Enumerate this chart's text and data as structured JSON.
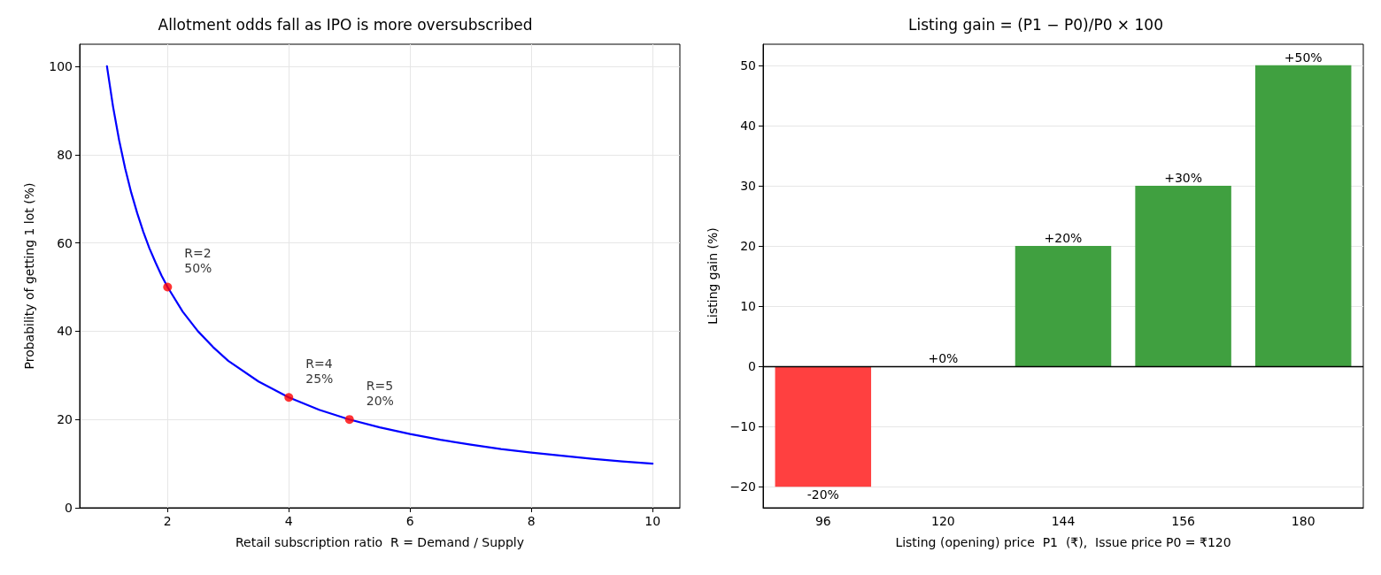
{
  "chart_data": [
    {
      "type": "line",
      "title": "Allotment odds fall as IPO is more oversubscribed",
      "xlabel": "Retail subscription ratio  R = Demand / Supply",
      "ylabel": "Probability of getting 1 lot (%)",
      "series": [
        {
          "type": "line",
          "color": "#0000ff",
          "marker": "none",
          "x": [
            1,
            1.1,
            1.2,
            1.3,
            1.4,
            1.5,
            1.6,
            1.7,
            1.8,
            1.9,
            2,
            2.25,
            2.5,
            2.75,
            3,
            3.5,
            4,
            4.5,
            5,
            5.5,
            6,
            6.5,
            7,
            7.5,
            8,
            8.5,
            9,
            9.5,
            10
          ],
          "values": [
            100,
            90.9,
            83.3,
            76.9,
            71.4,
            66.7,
            62.5,
            58.8,
            55.6,
            52.6,
            50,
            44.4,
            40,
            36.4,
            33.3,
            28.6,
            25,
            22.2,
            20,
            18.2,
            16.7,
            15.4,
            14.3,
            13.3,
            12.5,
            11.8,
            11.1,
            10.5,
            10
          ]
        },
        {
          "type": "scatter",
          "color": "#ff0000",
          "marker": "circle",
          "x": [
            2,
            4,
            5
          ],
          "values": [
            50,
            25,
            20
          ]
        }
      ],
      "annotations": [
        {
          "text": "R=2\n50%",
          "x": 2,
          "y": 50
        },
        {
          "text": "R=4\n25%",
          "x": 4,
          "y": 25
        },
        {
          "text": "R=5\n20%",
          "x": 5,
          "y": 20
        }
      ],
      "xlim": [
        0.55,
        10.45
      ],
      "xticks": [
        2,
        4,
        6,
        8,
        10
      ],
      "ylim": [
        0,
        105
      ],
      "yticks": [
        0,
        20,
        40,
        60,
        80,
        100
      ],
      "grid": true
    },
    {
      "type": "bar",
      "title": "Listing gain = (P1 − P0)/P0 × 100",
      "xlabel": "Listing (opening) price  P1  (₹),  Issue price P0 = ₹120",
      "ylabel": "Listing gain (%)",
      "categories": [
        "96",
        "120",
        "144",
        "156",
        "180"
      ],
      "values": [
        -20,
        0,
        20,
        30,
        50
      ],
      "colors": [
        "#ff4040",
        "#40a040",
        "#40a040",
        "#40a040",
        "#40a040"
      ],
      "value_labels": [
        "-20%",
        "+0%",
        "+20%",
        "+30%",
        "+50%"
      ],
      "ylim": [
        -23.5,
        53.5
      ],
      "yticks": [
        {
          "value": -20,
          "label": "−20"
        },
        {
          "value": -10,
          "label": "−10"
        },
        0,
        10,
        20,
        30,
        40,
        50
      ],
      "ref_lines": [
        {
          "axis": "y",
          "value": 0,
          "color": "#000000",
          "line_style": "solid"
        }
      ],
      "grid": "y"
    }
  ]
}
